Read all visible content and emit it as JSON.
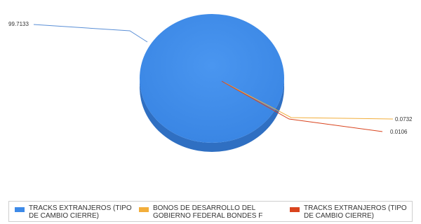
{
  "chart_data": {
    "type": "pie",
    "title": "",
    "slices": [
      {
        "label": "TRACKS EXTRANJEROS (TIPO DE CAMBIO CIERRE)",
        "value": 99.7133,
        "value_label": "99.7133",
        "color": "#3d8ae8"
      },
      {
        "label": "BONOS DE DESARROLLO DEL GOBIERNO FEDERAL BONDES F",
        "value": 0.0732,
        "value_label": "0.0732",
        "color": "#f2ae3b"
      },
      {
        "label": "TRACKS EXTRANJEROS (TIPO DE CAMBIO CIERRE)",
        "value": 0.0106,
        "value_label": "0.0106",
        "color": "#d9441e"
      }
    ],
    "legend_position": "bottom",
    "style": "3d"
  },
  "legend": {
    "items": [
      {
        "label": "TRACKS EXTRANJEROS (TIPO DE CAMBIO CIERRE)",
        "color": "#3d8ae8"
      },
      {
        "label": "BONOS DE DESARROLLO DEL GOBIERNO FEDERAL BONDES F",
        "color": "#f2ae3b"
      },
      {
        "label": "TRACKS EXTRANJEROS (TIPO DE CAMBIO CIERRE)",
        "color": "#d9441e"
      }
    ]
  }
}
